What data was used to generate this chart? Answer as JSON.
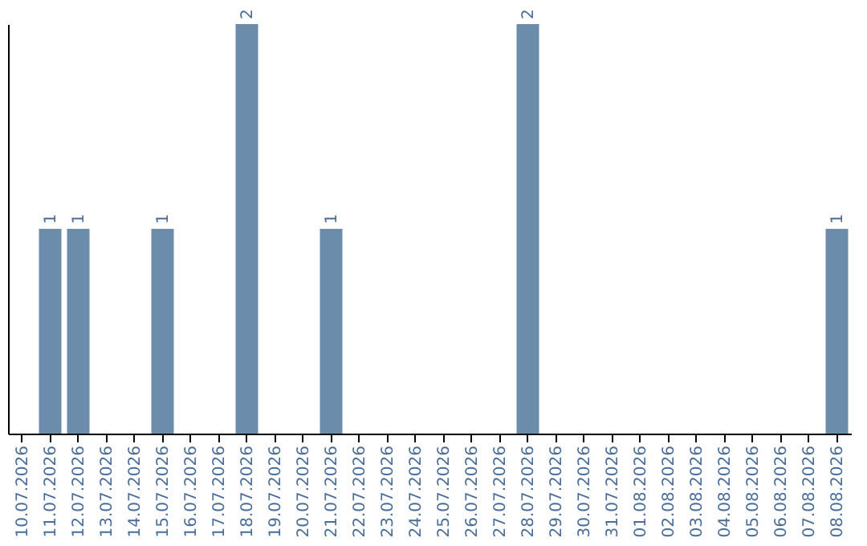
{
  "chart_data": {
    "type": "bar",
    "categories": [
      "10.07.2026",
      "11.07.2026",
      "12.07.2026",
      "13.07.2026",
      "14.07.2026",
      "15.07.2026",
      "16.07.2026",
      "17.07.2026",
      "18.07.2026",
      "19.07.2026",
      "20.07.2026",
      "21.07.2026",
      "22.07.2026",
      "23.07.2026",
      "24.07.2026",
      "25.07.2026",
      "26.07.2026",
      "27.07.2026",
      "28.07.2026",
      "29.07.2026",
      "30.07.2026",
      "31.07.2026",
      "01.08.2026",
      "02.08.2026",
      "03.08.2026",
      "04.08.2026",
      "05.08.2026",
      "06.08.2026",
      "07.08.2026",
      "08.08.2026"
    ],
    "values": [
      0,
      1,
      1,
      0,
      0,
      1,
      0,
      0,
      2,
      0,
      0,
      1,
      0,
      0,
      0,
      0,
      0,
      0,
      2,
      0,
      0,
      0,
      0,
      0,
      0,
      0,
      0,
      0,
      0,
      1
    ],
    "value_labels": [
      null,
      "1",
      "1",
      null,
      null,
      "1",
      null,
      null,
      "2",
      null,
      null,
      "1",
      null,
      null,
      null,
      null,
      null,
      null,
      "2",
      null,
      null,
      null,
      null,
      null,
      null,
      null,
      null,
      null,
      null,
      "1"
    ],
    "color": "#6b8cab",
    "ylim": [
      0,
      2
    ],
    "tick_labels": "x",
    "grid": false
  }
}
